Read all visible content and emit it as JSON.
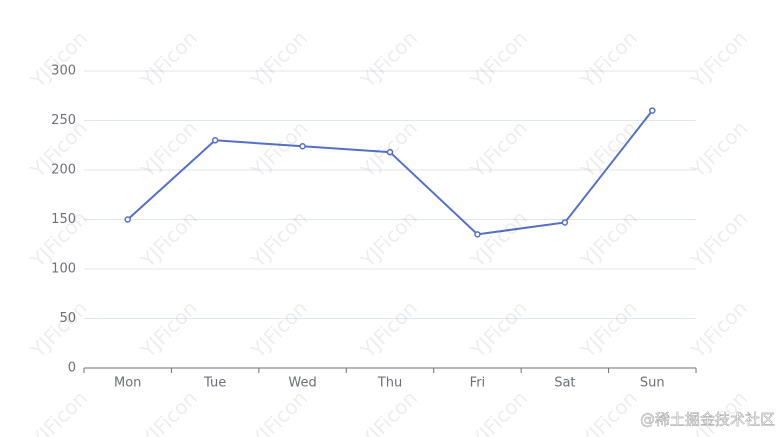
{
  "chart_data": {
    "type": "line",
    "categories": [
      "Mon",
      "Tue",
      "Wed",
      "Thu",
      "Fri",
      "Sat",
      "Sun"
    ],
    "series": [
      {
        "color": "#5470c6",
        "values": [
          150,
          230,
          224,
          218,
          135,
          147,
          260
        ]
      }
    ],
    "ylim": [
      0,
      300
    ],
    "yticks": [
      0,
      50,
      100,
      150,
      200,
      250,
      300
    ],
    "grid": true
  },
  "watermark": "YJFicon",
  "footer": "@稀土掘金技术社区"
}
